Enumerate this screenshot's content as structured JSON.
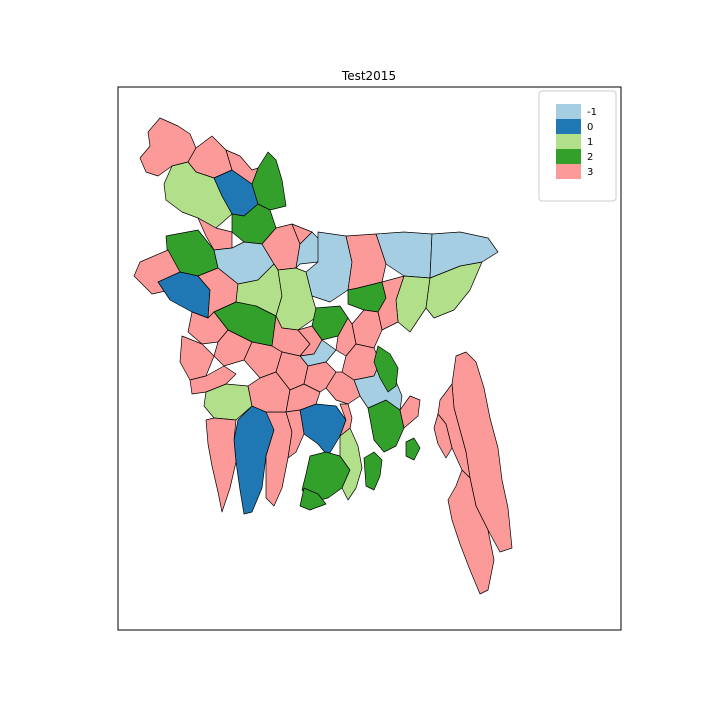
{
  "map": {
    "title": "Test2015",
    "legend": {
      "placement": "top-right",
      "entries": [
        {
          "label": "-1",
          "color": "#a6cee3"
        },
        {
          "label": "0",
          "color": "#1f78b4"
        },
        {
          "label": "1",
          "color": "#b2df8a"
        },
        {
          "label": "2",
          "color": "#33a02c"
        },
        {
          "label": "3",
          "color": "#fb9a99"
        }
      ]
    },
    "districts": [
      {
        "id": "d01",
        "value": 3
      },
      {
        "id": "d02",
        "value": 3
      },
      {
        "id": "d03",
        "value": 1
      },
      {
        "id": "d04",
        "value": 0
      },
      {
        "id": "d05",
        "value": 2
      },
      {
        "id": "d06",
        "value": 3
      },
      {
        "id": "d07",
        "value": 2
      },
      {
        "id": "d08",
        "value": 3
      },
      {
        "id": "d09",
        "value": 2
      },
      {
        "id": "d10",
        "value": -1
      },
      {
        "id": "d11",
        "value": 3
      },
      {
        "id": "d12",
        "value": 3
      },
      {
        "id": "d13",
        "value": -1
      },
      {
        "id": "d14",
        "value": 3
      },
      {
        "id": "d15",
        "value": -1
      },
      {
        "id": "d16",
        "value": -1
      },
      {
        "id": "d17",
        "value": 3
      },
      {
        "id": "d18",
        "value": 0
      },
      {
        "id": "d19",
        "value": 3
      },
      {
        "id": "d20",
        "value": 1
      },
      {
        "id": "d21",
        "value": 1
      },
      {
        "id": "d22",
        "value": 2
      },
      {
        "id": "d23",
        "value": 1
      },
      {
        "id": "d24",
        "value": 1
      },
      {
        "id": "d25",
        "value": 2
      },
      {
        "id": "d26",
        "value": 2
      },
      {
        "id": "d27",
        "value": 3
      },
      {
        "id": "d28",
        "value": 3
      },
      {
        "id": "d29",
        "value": 3
      },
      {
        "id": "d30",
        "value": -1
      },
      {
        "id": "d31",
        "value": 3
      },
      {
        "id": "d32",
        "value": 3
      },
      {
        "id": "d33",
        "value": 3
      },
      {
        "id": "d34",
        "value": -1
      },
      {
        "id": "d35",
        "value": 3
      },
      {
        "id": "d36",
        "value": 3
      },
      {
        "id": "d37",
        "value": 1
      },
      {
        "id": "d38",
        "value": 3
      },
      {
        "id": "d39",
        "value": 3
      },
      {
        "id": "d40",
        "value": 3
      },
      {
        "id": "d41",
        "value": 0
      },
      {
        "id": "d42",
        "value": 3
      },
      {
        "id": "d43",
        "value": 0
      },
      {
        "id": "d44",
        "value": 2
      },
      {
        "id": "d45",
        "value": 1
      },
      {
        "id": "d46",
        "value": 2
      },
      {
        "id": "d47",
        "value": 2
      },
      {
        "id": "d48",
        "value": -1
      },
      {
        "id": "d49",
        "value": 3
      },
      {
        "id": "d50",
        "value": 3
      },
      {
        "id": "d51",
        "value": 3
      },
      {
        "id": "d52",
        "value": 3
      },
      {
        "id": "d53",
        "value": 3
      },
      {
        "id": "d54",
        "value": 2
      },
      {
        "id": "d55",
        "value": 3
      },
      {
        "id": "d56",
        "value": 3
      },
      {
        "id": "d57",
        "value": 3
      },
      {
        "id": "d58",
        "value": 3
      },
      {
        "id": "d59",
        "value": 3
      },
      {
        "id": "d60",
        "value": 2
      },
      {
        "id": "d61",
        "value": 2
      },
      {
        "id": "d62",
        "value": 3
      },
      {
        "id": "d63",
        "value": 3
      },
      {
        "id": "d64",
        "value": 3
      }
    ]
  }
}
